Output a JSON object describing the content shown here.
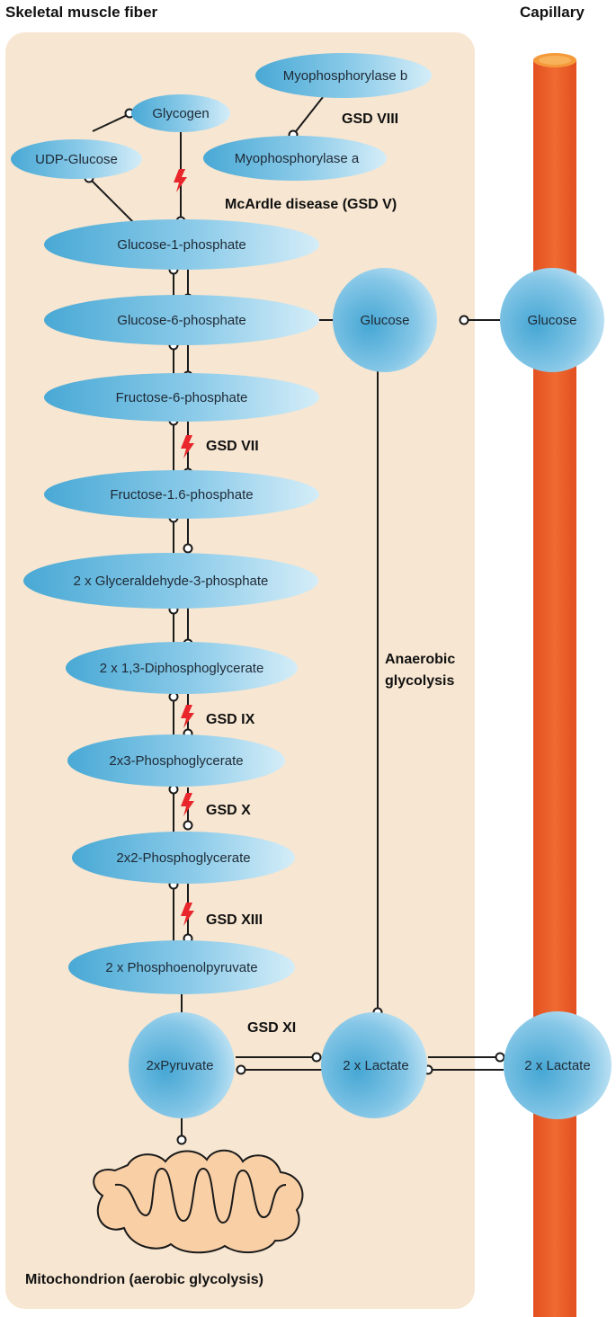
{
  "headers": {
    "left": "Skeletal muscle fiber",
    "right": "Capillary"
  },
  "nodes": {
    "glycogen": "Glycogen",
    "udp_glucose": "UDP-Glucose",
    "myophosphorylase_b": "Myophosphorylase b",
    "myophosphorylase_a": "Myophosphorylase a",
    "glucose_1_phosphate": "Glucose-1-phosphate",
    "glucose_6_phosphate": "Glucose-6-phosphate",
    "fructose_6_phosphate": "Fructose-6-phosphate",
    "fructose_16_phosphate": "Fructose-1.6-phosphate",
    "glyceraldehyde": "2 x Glyceraldehyde-3-phosphate",
    "diphosphoglycerate": "2 x 1,3-Diphosphoglycerate",
    "phosphoglycerate_3": "2x3-Phosphoglycerate",
    "phosphoglycerate_2": "2x2-Phosphoglycerate",
    "phosphoenolpyruvate": "2 x Phosphoenolpyruvate",
    "pyruvate": "2xPyruvate",
    "lactate_fiber": "2 x Lactate",
    "glucose_fiber": "Glucose",
    "glucose_capillary": "Glucose",
    "lactate_capillary": "2 x Lactate"
  },
  "labels": {
    "gsd_viii": "GSD VIII",
    "mcardle": "McArdle disease (GSD V)",
    "gsd_vii": "GSD VII",
    "gsd_ix": "GSD IX",
    "gsd_x": "GSD X",
    "gsd_xiii": "GSD XIII",
    "gsd_xi": "GSD XI",
    "anaerobic_line1": "Anaerobic",
    "anaerobic_line2": "glycolysis",
    "mitochondrion": "Mitochondrion (aerobic glycolysis)"
  },
  "colors": {
    "fiber_background": "#f7e6d1",
    "node_dark": "#4aabd6",
    "node_light": "#cfeaf6",
    "capillary": "#ee5b2a",
    "capillary_top": "#f59a3a",
    "mitochondrion_fill": "#f9cfa6",
    "bolt": "#e8262b"
  }
}
